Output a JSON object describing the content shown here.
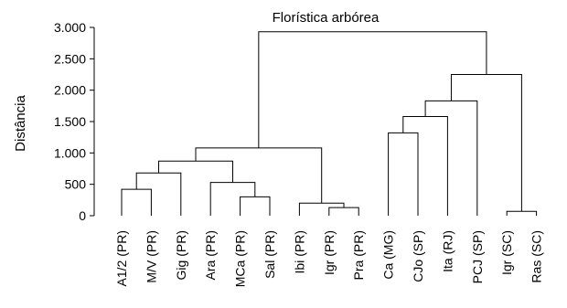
{
  "chart_data": {
    "type": "dendrogram",
    "title": "Florística arbórea",
    "xlabel": "",
    "ylabel": "Distância",
    "ylim": [
      0,
      3000
    ],
    "grid": false,
    "y_ticks": [
      {
        "value": 0,
        "label": "0"
      },
      {
        "value": 500,
        "label": "500"
      },
      {
        "value": 1000,
        "label": "1.000"
      },
      {
        "value": 1500,
        "label": "1.500"
      },
      {
        "value": 2000,
        "label": "2.000"
      },
      {
        "value": 2500,
        "label": "2.500"
      },
      {
        "value": 3000,
        "label": "3.000"
      }
    ],
    "leaves": [
      "A1/2 (PR)",
      "M/V (PR)",
      "Gig (PR)",
      "Ara (PR)",
      "MCa (PR)",
      "Sal (PR)",
      "Ibi (PR)",
      "Igr (PR)",
      "Pra (PR)",
      "Ca (MG)",
      "CJo (SP)",
      "Ita (RJ)",
      "PCJ (SP)",
      "Igr (SC)",
      "Ras (SC)"
    ],
    "merges": [
      {
        "id": "n1",
        "left": "A1/2 (PR)",
        "right": "M/V (PR)",
        "height": 420
      },
      {
        "id": "n2",
        "left": "n1",
        "right": "Gig (PR)",
        "height": 680
      },
      {
        "id": "n3",
        "left": "MCa (PR)",
        "right": "Sal (PR)",
        "height": 300
      },
      {
        "id": "n4",
        "left": "Ara (PR)",
        "right": "n3",
        "height": 530
      },
      {
        "id": "n5",
        "left": "n2",
        "right": "n4",
        "height": 870
      },
      {
        "id": "n6",
        "left": "Igr (PR)",
        "right": "Pra (PR)",
        "height": 130
      },
      {
        "id": "n7",
        "left": "Ibi (PR)",
        "right": "n6",
        "height": 200
      },
      {
        "id": "n8",
        "left": "n5",
        "right": "n7",
        "height": 1080
      },
      {
        "id": "n9",
        "left": "Ca (MG)",
        "right": "CJo (SP)",
        "height": 1320
      },
      {
        "id": "n10",
        "left": "n9",
        "right": "Ita (RJ)",
        "height": 1580
      },
      {
        "id": "n11",
        "left": "n10",
        "right": "PCJ (SP)",
        "height": 1830
      },
      {
        "id": "n12",
        "left": "Igr (SC)",
        "right": "Ras (SC)",
        "height": 70
      },
      {
        "id": "n13",
        "left": "n11",
        "right": "n12",
        "height": 2250
      },
      {
        "id": "n14",
        "left": "n8",
        "right": "n13",
        "height": 2930
      }
    ]
  }
}
